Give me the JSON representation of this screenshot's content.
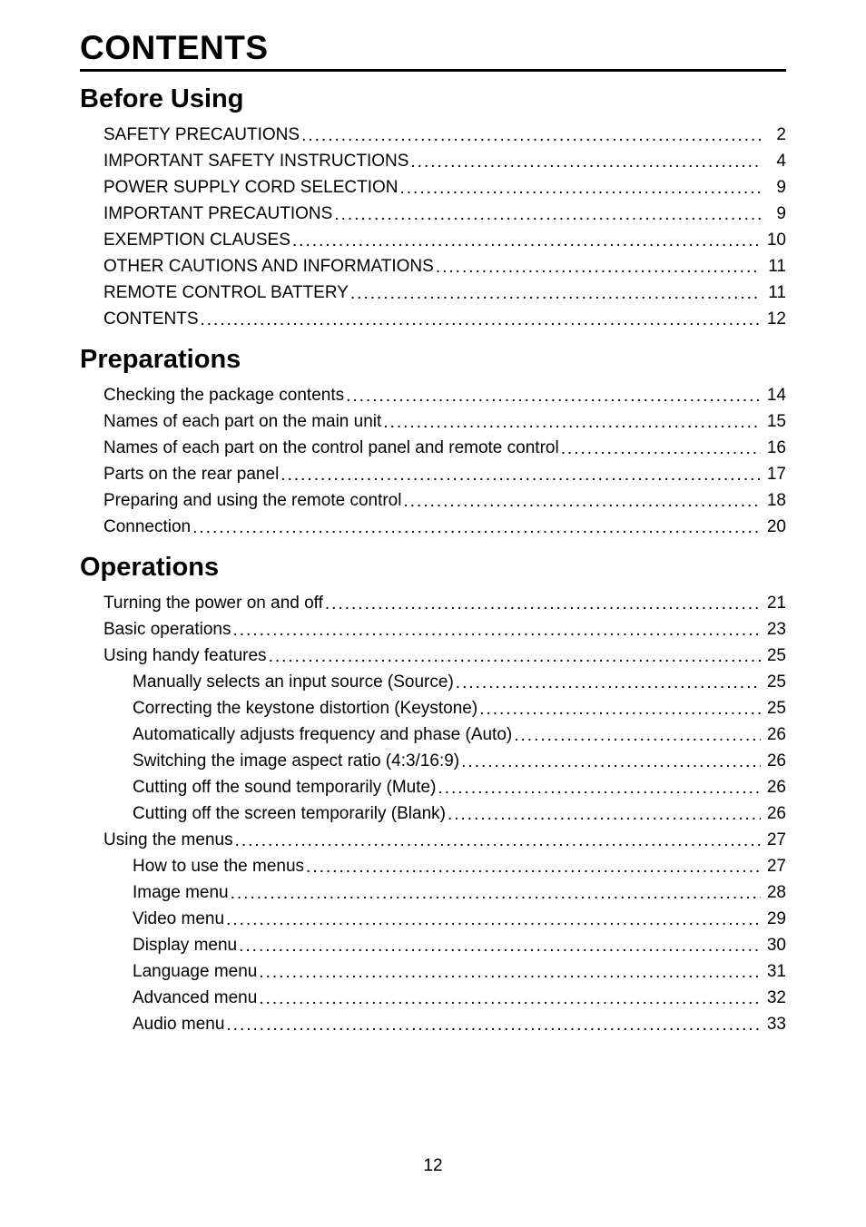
{
  "title": "CONTENTS",
  "page_number": "12",
  "typography": {
    "title_fontsize": 37,
    "section_fontsize": 29,
    "entry_fontsize": 19,
    "text_color": "#000000",
    "background_color": "#ffffff"
  },
  "sections": [
    {
      "heading": "Before Using",
      "entries": [
        {
          "label": "SAFETY PRECAUTIONS",
          "page": "2",
          "indent": 1
        },
        {
          "label": "IMPORTANT SAFETY INSTRUCTIONS",
          "page": "4",
          "indent": 1
        },
        {
          "label": "POWER SUPPLY CORD SELECTION",
          "page": "9",
          "indent": 1
        },
        {
          "label": "IMPORTANT PRECAUTIONS",
          "page": "9",
          "indent": 1
        },
        {
          "label": "EXEMPTION CLAUSES",
          "page": "10",
          "indent": 1
        },
        {
          "label": "OTHER CAUTIONS AND INFORMATIONS",
          "page": "11",
          "indent": 1
        },
        {
          "label": "REMOTE CONTROL BATTERY",
          "page": "11",
          "indent": 1
        },
        {
          "label": "CONTENTS",
          "page": "12",
          "indent": 1
        }
      ]
    },
    {
      "heading": "Preparations",
      "entries": [
        {
          "label": "Checking the package contents",
          "page": "14",
          "indent": 1
        },
        {
          "label": "Names of each part on the main unit",
          "page": "15",
          "indent": 1
        },
        {
          "label": "Names of each part on the control panel and remote control",
          "page": "16",
          "indent": 1
        },
        {
          "label": "Parts on the rear panel",
          "page": "17",
          "indent": 1
        },
        {
          "label": "Preparing and using the remote control",
          "page": "18",
          "indent": 1
        },
        {
          "label": "Connection",
          "page": "20",
          "indent": 1
        }
      ]
    },
    {
      "heading": "Operations",
      "entries": [
        {
          "label": "Turning the power on and off",
          "page": "21",
          "indent": 1
        },
        {
          "label": "Basic operations",
          "page": "23",
          "indent": 1
        },
        {
          "label": "Using handy features",
          "page": "25",
          "indent": 1
        },
        {
          "label": "Manually selects an input source (Source)",
          "page": "25",
          "indent": 2
        },
        {
          "label": "Correcting the keystone distortion (Keystone)",
          "page": "25",
          "indent": 2
        },
        {
          "label": "Automatically adjusts frequency and phase (Auto)",
          "page": "26",
          "indent": 2
        },
        {
          "label": "Switching the image aspect ratio (4:3/16:9)",
          "page": "26",
          "indent": 2
        },
        {
          "label": "Cutting off the sound temporarily (Mute)",
          "page": "26",
          "indent": 2
        },
        {
          "label": "Cutting off the screen temporarily (Blank)",
          "page": "26",
          "indent": 2
        },
        {
          "label": "Using the menus",
          "page": "27",
          "indent": 1
        },
        {
          "label": "How to use the menus",
          "page": "27",
          "indent": 2
        },
        {
          "label": "Image menu",
          "page": "28",
          "indent": 2
        },
        {
          "label": "Video menu",
          "page": "29",
          "indent": 2
        },
        {
          "label": "Display menu",
          "page": "30",
          "indent": 2
        },
        {
          "label": "Language menu",
          "page": "31",
          "indent": 2
        },
        {
          "label": "Advanced menu",
          "page": "32",
          "indent": 2
        },
        {
          "label": "Audio menu",
          "page": "33",
          "indent": 2
        }
      ]
    }
  ]
}
